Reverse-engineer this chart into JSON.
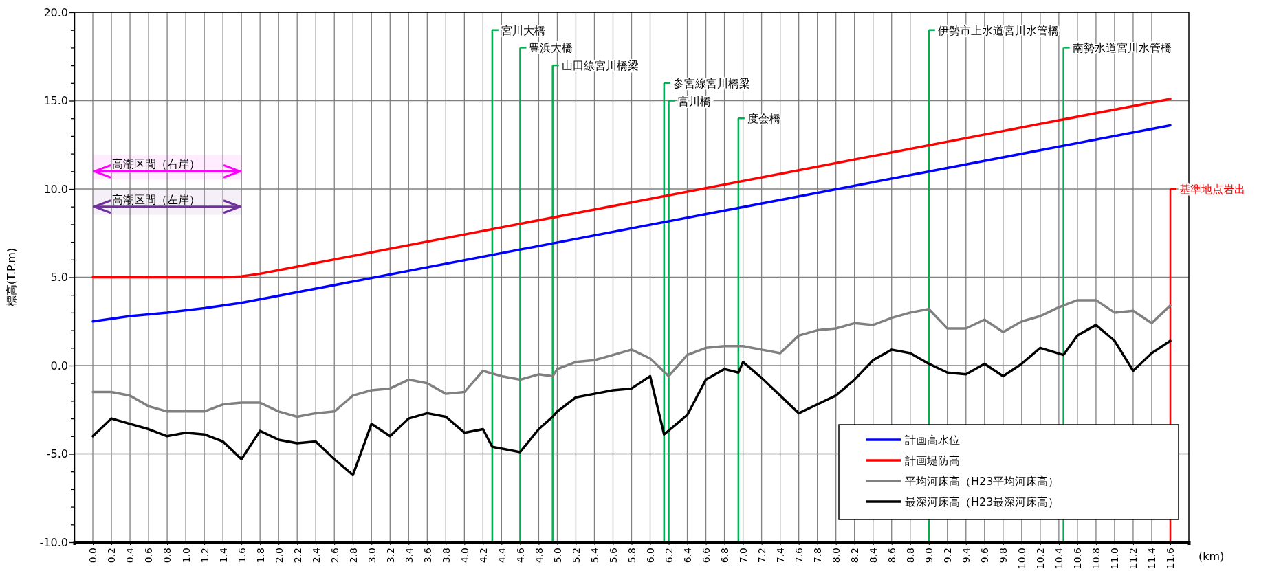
{
  "chart_data": {
    "type": "line",
    "ylabel": "標高(T.P.m)",
    "xlabel": "(km)",
    "xlim": [
      -0.2,
      11.8
    ],
    "ylim": [
      -10,
      20
    ],
    "xticks": [
      {
        "value": 0,
        "label": "0.0"
      },
      {
        "value": 0.2,
        "label": "0.2"
      },
      {
        "value": 0.4,
        "label": "0.4"
      },
      {
        "value": 0.6,
        "label": "0.6"
      },
      {
        "value": 0.8,
        "label": "0.8"
      },
      {
        "value": 1,
        "label": "1.0"
      },
      {
        "value": 1.2,
        "label": "1.2"
      },
      {
        "value": 1.4,
        "label": "1.4"
      },
      {
        "value": 1.6,
        "label": "1.6"
      },
      {
        "value": 1.8,
        "label": "1.8"
      },
      {
        "value": 2,
        "label": "2.0"
      },
      {
        "value": 2.2,
        "label": "2.2"
      },
      {
        "value": 2.4,
        "label": "2.4"
      },
      {
        "value": 2.6,
        "label": "2.6"
      },
      {
        "value": 2.8,
        "label": "2.8"
      },
      {
        "value": 3,
        "label": "3.0"
      },
      {
        "value": 3.2,
        "label": "3.2"
      },
      {
        "value": 3.4,
        "label": "3.4"
      },
      {
        "value": 3.6,
        "label": "3.6"
      },
      {
        "value": 3.8,
        "label": "3.8"
      },
      {
        "value": 4,
        "label": "4.0"
      },
      {
        "value": 4.2,
        "label": "4.2"
      },
      {
        "value": 4.4,
        "label": "4.4"
      },
      {
        "value": 4.6,
        "label": "4.6"
      },
      {
        "value": 4.8,
        "label": "4.8"
      },
      {
        "value": 5,
        "label": "5.0"
      },
      {
        "value": 5.2,
        "label": "5.2"
      },
      {
        "value": 5.4,
        "label": "5.4"
      },
      {
        "value": 5.6,
        "label": "5.6"
      },
      {
        "value": 5.8,
        "label": "5.8"
      },
      {
        "value": 6,
        "label": "6.0"
      },
      {
        "value": 6.2,
        "label": "6.2"
      },
      {
        "value": 6.4,
        "label": "6.4"
      },
      {
        "value": 6.6,
        "label": "6.6"
      },
      {
        "value": 6.8,
        "label": "6.8"
      },
      {
        "value": 7,
        "label": "7.0"
      },
      {
        "value": 7.2,
        "label": "7.2"
      },
      {
        "value": 7.4,
        "label": "7.4"
      },
      {
        "value": 7.6,
        "label": "7.6"
      },
      {
        "value": 7.8,
        "label": "7.8"
      },
      {
        "value": 8,
        "label": "8.0"
      },
      {
        "value": 8.2,
        "label": "8.2"
      },
      {
        "value": 8.4,
        "label": "8.4"
      },
      {
        "value": 8.6,
        "label": "8.6"
      },
      {
        "value": 8.8,
        "label": "8.8"
      },
      {
        "value": 9,
        "label": "9.0"
      },
      {
        "value": 9.2,
        "label": "9.2"
      },
      {
        "value": 9.4,
        "label": "9.4"
      },
      {
        "value": 9.6,
        "label": "9.6"
      },
      {
        "value": 9.8,
        "label": "9.8"
      },
      {
        "value": 10,
        "label": "10.0"
      },
      {
        "value": 10.2,
        "label": "10.2"
      },
      {
        "value": 10.4,
        "label": "10.4"
      },
      {
        "value": 10.6,
        "label": "10.6"
      },
      {
        "value": 10.8,
        "label": "10.8"
      },
      {
        "value": 11,
        "label": "11.0"
      },
      {
        "value": 11.2,
        "label": "11.2"
      },
      {
        "value": 11.4,
        "label": "11.4"
      },
      {
        "value": 11.6,
        "label": "11.6"
      }
    ],
    "yticks": [
      {
        "value": -10,
        "label": "-10.0"
      },
      {
        "value": -9,
        "label": null
      },
      {
        "value": -8,
        "label": null
      },
      {
        "value": -7,
        "label": null
      },
      {
        "value": -6,
        "label": null
      },
      {
        "value": -5,
        "label": "-5.0"
      },
      {
        "value": -4,
        "label": null
      },
      {
        "value": -3,
        "label": null
      },
      {
        "value": -2,
        "label": null
      },
      {
        "value": -1,
        "label": null
      },
      {
        "value": 0,
        "label": "0.0"
      },
      {
        "value": 1,
        "label": null
      },
      {
        "value": 2,
        "label": null
      },
      {
        "value": 3,
        "label": null
      },
      {
        "value": 4,
        "label": null
      },
      {
        "value": 5,
        "label": "5.0"
      },
      {
        "value": 6,
        "label": null
      },
      {
        "value": 7,
        "label": null
      },
      {
        "value": 8,
        "label": null
      },
      {
        "value": 9,
        "label": null
      },
      {
        "value": 10,
        "label": "10.0"
      },
      {
        "value": 11,
        "label": null
      },
      {
        "value": 12,
        "label": null
      },
      {
        "value": 13,
        "label": null
      },
      {
        "value": 14,
        "label": null
      },
      {
        "value": 15,
        "label": "15.0"
      },
      {
        "value": 16,
        "label": null
      },
      {
        "value": 17,
        "label": null
      },
      {
        "value": 18,
        "label": null
      },
      {
        "value": 19,
        "label": null
      },
      {
        "value": 20,
        "label": "20.0"
      }
    ],
    "grid": true,
    "legend": "bottom right",
    "series": [
      {
        "name": "計画高水位",
        "color": "#0000ff",
        "x": [
          0,
          0.4,
          0.8,
          1.2,
          1.6,
          11.6
        ],
        "values": [
          2.5,
          2.8,
          3.0,
          3.25,
          3.55,
          13.6
        ]
      },
      {
        "name": "計画堤防高",
        "color": "#ff0000",
        "x": [
          0,
          1.4,
          1.6,
          1.8,
          2.0,
          11.6
        ],
        "values": [
          5.0,
          5.0,
          5.05,
          5.2,
          5.4,
          15.1
        ]
      },
      {
        "name": "平均河床高（H23平均河床高）",
        "color": "#808080",
        "x": [
          0,
          0.2,
          0.4,
          0.6,
          0.8,
          1.0,
          1.2,
          1.4,
          1.6,
          1.8,
          2.0,
          2.2,
          2.4,
          2.6,
          2.8,
          3.0,
          3.2,
          3.4,
          3.6,
          3.8,
          4.0,
          4.2,
          4.4,
          4.6,
          4.8,
          4.95,
          5.0,
          5.2,
          5.4,
          5.6,
          5.8,
          6.0,
          6.2,
          6.4,
          6.6,
          6.8,
          7.0,
          7.2,
          7.4,
          7.6,
          7.8,
          8.0,
          8.2,
          8.4,
          8.6,
          8.8,
          9.0,
          9.2,
          9.4,
          9.6,
          9.8,
          10.0,
          10.2,
          10.4,
          10.6,
          10.8,
          11.0,
          11.2,
          11.4,
          11.6
        ],
        "values": [
          -1.5,
          -1.5,
          -1.7,
          -2.3,
          -2.6,
          -2.6,
          -2.6,
          -2.2,
          -2.1,
          -2.1,
          -2.6,
          -2.9,
          -2.7,
          -2.6,
          -1.7,
          -1.4,
          -1.3,
          -0.8,
          -1.0,
          -1.6,
          -1.5,
          -0.3,
          -0.6,
          -0.8,
          -0.5,
          -0.6,
          -0.2,
          0.2,
          0.3,
          0.6,
          0.9,
          0.4,
          -0.6,
          0.6,
          1.0,
          1.1,
          1.1,
          0.9,
          0.7,
          1.7,
          2.0,
          2.1,
          2.4,
          2.3,
          2.7,
          3.0,
          3.2,
          2.1,
          2.1,
          2.6,
          1.9,
          2.5,
          2.8,
          3.3,
          3.7,
          3.7,
          3.0,
          3.1,
          2.4,
          3.4
        ]
      },
      {
        "name": "最深河床高（H23最深河床高）",
        "color": "#000000",
        "x": [
          0,
          0.2,
          0.4,
          0.6,
          0.8,
          1.0,
          1.2,
          1.4,
          1.6,
          1.8,
          2.0,
          2.2,
          2.4,
          2.6,
          2.8,
          3.0,
          3.2,
          3.4,
          3.6,
          3.8,
          4.0,
          4.2,
          4.3,
          4.4,
          4.6,
          4.8,
          4.95,
          5.0,
          5.2,
          5.4,
          5.6,
          5.8,
          6.0,
          6.15,
          6.4,
          6.6,
          6.8,
          6.95,
          7.0,
          7.2,
          7.6,
          7.8,
          8.0,
          8.2,
          8.4,
          8.6,
          8.8,
          9.0,
          9.2,
          9.4,
          9.6,
          9.8,
          10.0,
          10.2,
          10.45,
          10.6,
          10.8,
          11.0,
          11.2,
          11.4,
          11.6
        ],
        "values": [
          -4.0,
          -3.0,
          -3.3,
          -3.6,
          -4.0,
          -3.8,
          -3.9,
          -4.3,
          -5.3,
          -3.7,
          -4.2,
          -4.4,
          -4.3,
          -5.3,
          -6.2,
          -3.3,
          -4.0,
          -3.0,
          -2.7,
          -2.9,
          -3.8,
          -3.6,
          -4.6,
          -4.7,
          -4.9,
          -3.6,
          -2.9,
          -2.6,
          -1.8,
          -1.6,
          -1.4,
          -1.3,
          -0.6,
          -3.9,
          -2.8,
          -0.8,
          -0.2,
          -0.4,
          0.2,
          -0.7,
          -2.7,
          -2.2,
          -1.7,
          -0.8,
          0.3,
          0.9,
          0.7,
          0.1,
          -0.4,
          -0.5,
          0.1,
          -0.6,
          0.1,
          1.0,
          0.6,
          1.7,
          2.3,
          1.4,
          -0.3,
          0.7,
          1.4
        ]
      }
    ],
    "ref_lines": [
      {
        "axis": "x",
        "value": 4.3,
        "color": "#00b050",
        "label": "宮川大橋"
      },
      {
        "axis": "x",
        "value": 4.6,
        "color": "#00b050",
        "label": "豊浜大橋"
      },
      {
        "axis": "x",
        "value": 4.95,
        "color": "#00b050",
        "label": "山田線宮川橋梁"
      },
      {
        "axis": "x",
        "value": 6.15,
        "color": "#00b050",
        "label": "参宮線宮川橋梁"
      },
      {
        "axis": "x",
        "value": 6.2,
        "color": "#00b050",
        "label": "宮川橋"
      },
      {
        "axis": "x",
        "value": 6.95,
        "color": "#00b050",
        "label": "度会橋"
      },
      {
        "axis": "x",
        "value": 9.0,
        "color": "#00b050",
        "label": "伊勢市上水道宮川水管橋"
      },
      {
        "axis": "x",
        "value": 10.45,
        "color": "#00b050",
        "label": "南勢水道宮川水管橋"
      },
      {
        "axis": "x",
        "value": 11.6,
        "color": "#ff0000",
        "label": "基準地点岩出"
      }
    ],
    "bands": [
      {
        "axis": "x",
        "from": 0,
        "to": 1.6,
        "label": "高潮区間（右岸）",
        "color": "#ff00ff"
      },
      {
        "axis": "x",
        "from": 0,
        "to": 1.6,
        "label": "高潮区間（左岸）",
        "color": "#7030a0"
      }
    ]
  }
}
